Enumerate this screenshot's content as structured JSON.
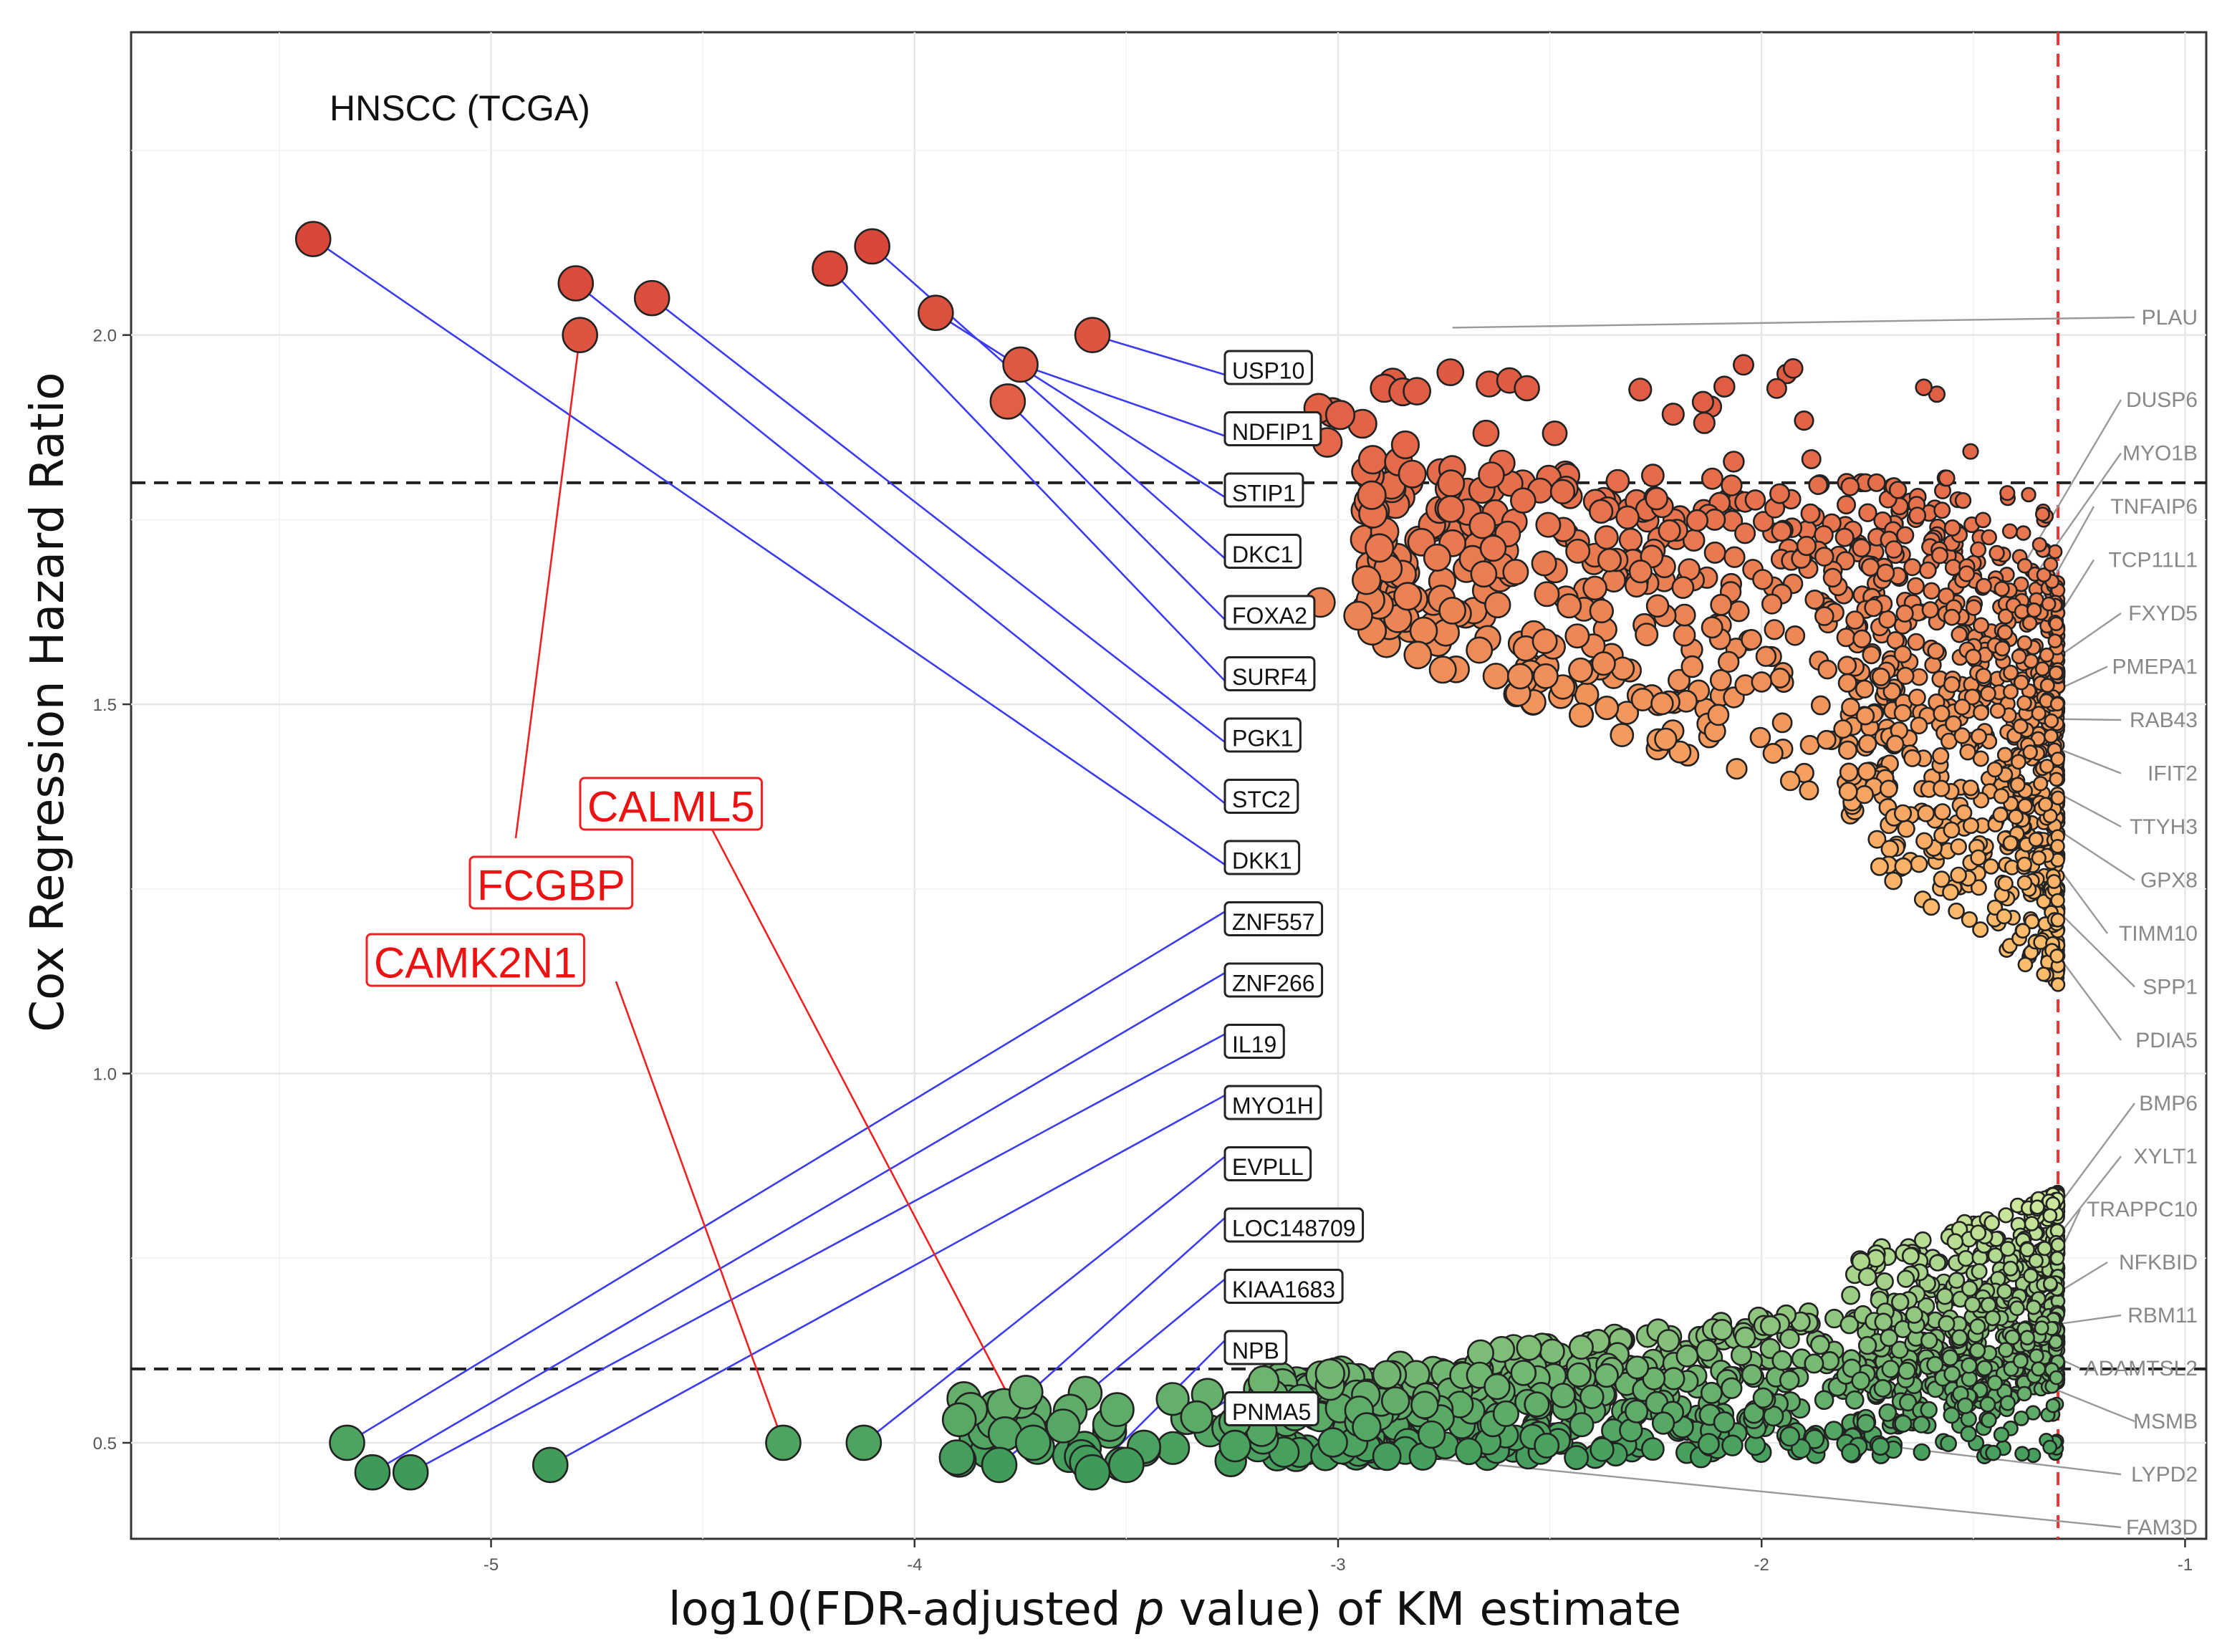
{
  "chart_data": {
    "type": "scatter",
    "title": "HNSCC (TCGA)",
    "xlabel": "log10(FDR-adjusted p value) of KM estimate",
    "xlabel_parts": {
      "before": "log10(FDR-adjusted ",
      "italic": "p",
      "after": " value) of KM estimate"
    },
    "ylabel": "Cox Regression Hazard Ratio",
    "xlim": [
      -5.85,
      -0.95
    ],
    "ylim": [
      0.37,
      2.41
    ],
    "x_ticks": [
      -5,
      -4,
      -3,
      -2,
      -1
    ],
    "x_tick_labels": [
      "-5",
      "-4",
      "-3",
      "-2",
      "-1"
    ],
    "y_ticks": [
      0.5,
      1.0,
      1.5,
      2.0
    ],
    "y_tick_labels": [
      "0.5",
      "1.0",
      "1.5",
      "2.0"
    ],
    "grid": true,
    "hlines": [
      1.8,
      0.6
    ],
    "vline": -1.3,
    "colors": {
      "high_hr": "#d9473a",
      "mid_hr": "#fdbb6c",
      "low_hr_light": "#d4eba0",
      "low_hr_dark": "#3d9a58",
      "lead_blue": "#3b3bf0",
      "lead_red": "#ee2222",
      "lead_gray": "#999999"
    },
    "labeled_points": [
      {
        "gene": "USP10",
        "x": -3.58,
        "y": 2.0
      },
      {
        "gene": "NDFIP1",
        "x": -3.75,
        "y": 1.96
      },
      {
        "gene": "STIP1",
        "x": -3.95,
        "y": 2.03
      },
      {
        "gene": "DKC1",
        "x": -4.1,
        "y": 2.12
      },
      {
        "gene": "FOXA2",
        "x": -3.78,
        "y": 1.91
      },
      {
        "gene": "SURF4",
        "x": -4.2,
        "y": 2.09
      },
      {
        "gene": "PGK1",
        "x": -4.62,
        "y": 2.05
      },
      {
        "gene": "STC2",
        "x": -4.8,
        "y": 2.07
      },
      {
        "gene": "DKK1",
        "x": -5.42,
        "y": 2.13
      },
      {
        "gene": "ZNF557",
        "x": -5.34,
        "y": 0.5
      },
      {
        "gene": "ZNF266",
        "x": -5.28,
        "y": 0.46
      },
      {
        "gene": "IL19",
        "x": -5.19,
        "y": 0.46
      },
      {
        "gene": "MYO1H",
        "x": -4.86,
        "y": 0.47
      },
      {
        "gene": "EVPLL",
        "x": -4.12,
        "y": 0.5
      },
      {
        "gene": "LOC148709",
        "x": -3.9,
        "y": 0.48
      },
      {
        "gene": "KIAA1683",
        "x": -3.8,
        "y": 0.47
      },
      {
        "gene": "NPB",
        "x": -3.58,
        "y": 0.46
      },
      {
        "gene": "PNMA5",
        "x": -3.5,
        "y": 0.47
      }
    ],
    "highlighted_points": [
      {
        "gene": "CALML5",
        "x": -3.72,
        "y": 0.5
      },
      {
        "gene": "FCGBP",
        "x": -4.79,
        "y": 2.0
      },
      {
        "gene": "CAMK2N1",
        "x": -4.31,
        "y": 0.5
      }
    ],
    "right_labels": [
      {
        "gene": "PLAU",
        "x": -2.73,
        "y": 2.01
      },
      {
        "gene": "DUSP6",
        "x": -1.38,
        "y": 1.69
      },
      {
        "gene": "MYO1B",
        "x": -1.36,
        "y": 1.67
      },
      {
        "gene": "TNFAIP6",
        "x": -1.34,
        "y": 1.64
      },
      {
        "gene": "TCP11L1",
        "x": -1.32,
        "y": 1.6
      },
      {
        "gene": "FXYD5",
        "x": -1.31,
        "y": 1.56
      },
      {
        "gene": "PMEPA1",
        "x": -1.3,
        "y": 1.52
      },
      {
        "gene": "RAB43",
        "x": -1.3,
        "y": 1.48
      },
      {
        "gene": "IFIT2",
        "x": -1.3,
        "y": 1.44
      },
      {
        "gene": "TTYH3",
        "x": -1.3,
        "y": 1.38
      },
      {
        "gene": "GPX8",
        "x": -1.3,
        "y": 1.33
      },
      {
        "gene": "TIMM10",
        "x": -1.3,
        "y": 1.28
      },
      {
        "gene": "SPP1",
        "x": -1.3,
        "y": 1.22
      },
      {
        "gene": "PDIA5",
        "x": -1.3,
        "y": 1.16
      },
      {
        "gene": "BMP6",
        "x": -1.3,
        "y": 0.82
      },
      {
        "gene": "XYLT1",
        "x": -1.3,
        "y": 0.78
      },
      {
        "gene": "TRAPPC10",
        "x": -1.31,
        "y": 0.74
      },
      {
        "gene": "NFKBID",
        "x": -1.31,
        "y": 0.7
      },
      {
        "gene": "RBM11",
        "x": -1.31,
        "y": 0.66
      },
      {
        "gene": "ADAMTSL2",
        "x": -1.32,
        "y": 0.62
      },
      {
        "gene": "MSMB",
        "x": -1.34,
        "y": 0.58
      },
      {
        "gene": "LYPD2",
        "x": -2.2,
        "y": 0.53
      },
      {
        "gene": "FAM3D",
        "x": -3.15,
        "y": 0.5
      }
    ]
  }
}
